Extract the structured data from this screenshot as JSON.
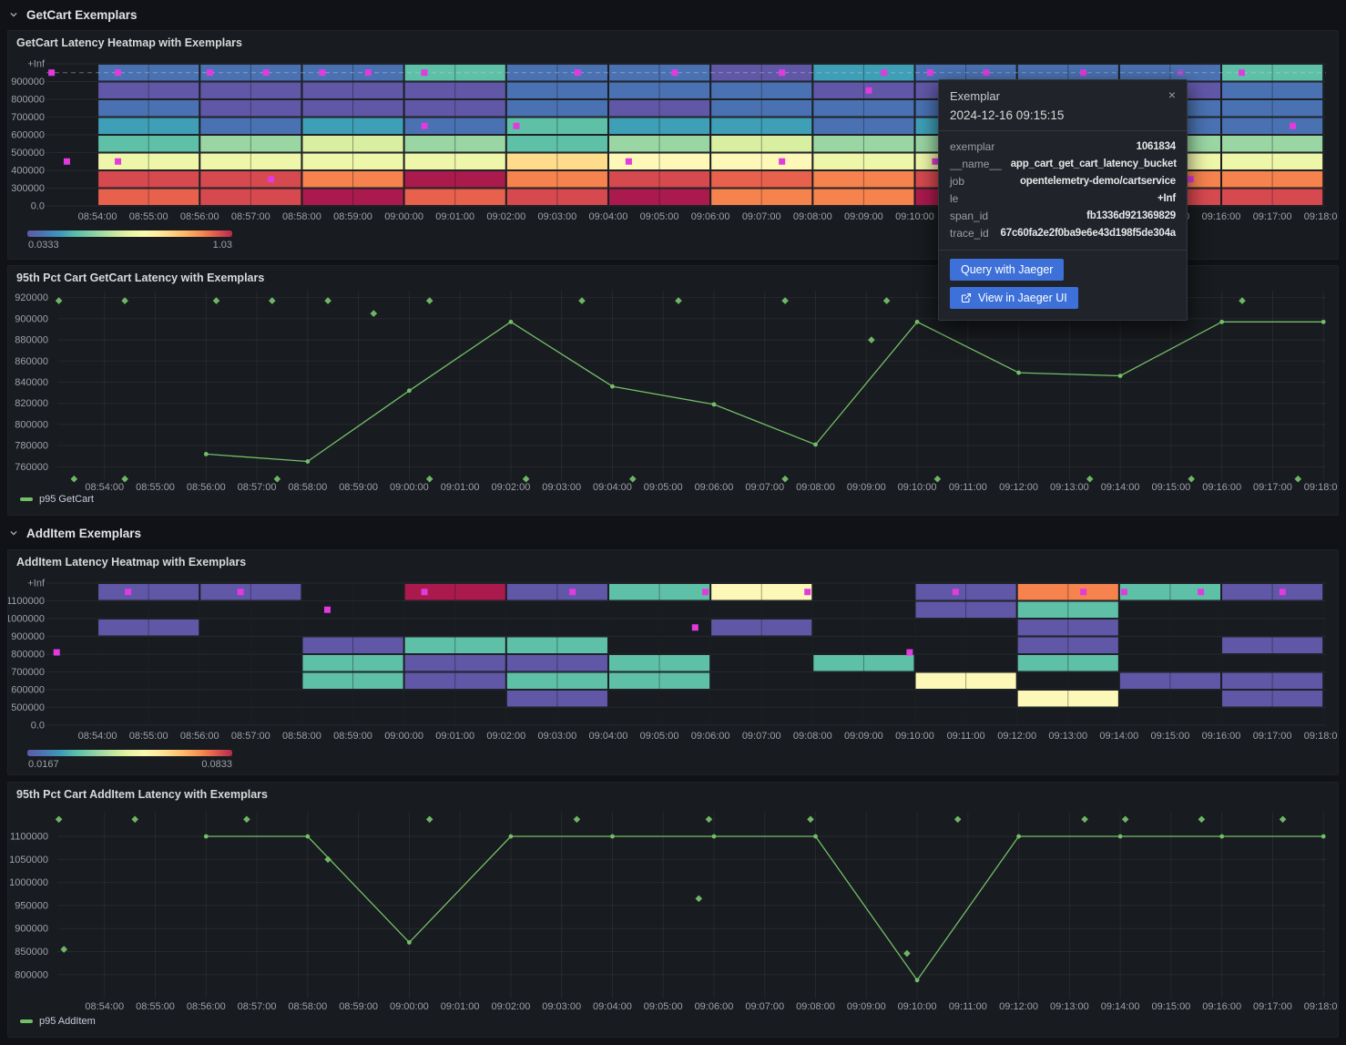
{
  "page": {
    "background": "#111217",
    "panel_background": "#181b1f"
  },
  "rows": [
    {
      "title": "GetCart Exemplars"
    },
    {
      "title": "AddItem Exemplars"
    }
  ],
  "xticks": {
    "start_minute": 54,
    "labels": [
      "08:54:00",
      "08:55:00",
      "08:56:00",
      "08:57:00",
      "08:58:00",
      "08:59:00",
      "09:00:00",
      "09:01:00",
      "09:02:00",
      "09:03:00",
      "09:04:00",
      "09:05:00",
      "09:06:00",
      "09:07:00",
      "09:08:00",
      "09:09:00",
      "09:10:00",
      "09:11:00",
      "09:12:00",
      "09:13:00",
      "09:14:00",
      "09:15:00",
      "09:16:00",
      "09:17:00",
      "09:18:00"
    ]
  },
  "palette": {
    "P": "#6057a7",
    "B": "#4a72b2",
    "T": "#3e9fb7",
    "G": "#5fc0a8",
    "g": "#9ad6a4",
    "y": "#d8eea0",
    "Y": "#eef6a9",
    "C": "#fdf8b8",
    "p": "#fedc8c",
    "O": "#f6824e",
    "r": "#e8614d",
    "R": "#d6494f",
    "K": "#ab1a4d"
  },
  "exemplar_color": "#e23adf",
  "series_color": "#73bf69",
  "chart_data": [
    {
      "type": "heatmap",
      "panel_title": "GetCart Latency Heatmap with Exemplars",
      "x_range": [
        53.0,
        78.05
      ],
      "col_start_minute": 54,
      "col_width_minutes": 2,
      "ybounds": [
        "+Inf",
        "900000",
        "800000",
        "700000",
        "600000",
        "500000",
        "400000",
        "300000",
        "0.0"
      ],
      "columns": [
        "BPBTGYRr",
        "BPPBgYRR",
        "BPPTyYOK",
        "GPPBgYKr",
        "BBBGGpOR",
        "BBPTgCRK",
        "PBBTyCrO",
        "TPBBgYOO",
        "BPBTgYRK",
        "BPBBgYOR",
        "BPBBgYOR",
        "GBBBgYOR"
      ],
      "exemplars": [
        {
          "m": 53.1,
          "band": 0
        },
        {
          "m": 54.4,
          "band": 0
        },
        {
          "m": 56.2,
          "band": 0
        },
        {
          "m": 57.3,
          "band": 0
        },
        {
          "m": 58.4,
          "band": 0
        },
        {
          "m": 59.3,
          "band": 0
        },
        {
          "m": 60.4,
          "band": 0
        },
        {
          "m": 63.4,
          "band": 0
        },
        {
          "m": 65.3,
          "band": 0
        },
        {
          "m": 67.4,
          "band": 0
        },
        {
          "m": 69.4,
          "band": 0
        },
        {
          "m": 70.3,
          "band": 0
        },
        {
          "m": 71.4,
          "band": 0
        },
        {
          "m": 73.3,
          "band": 0
        },
        {
          "m": 75.2,
          "band": 0,
          "faded": true
        },
        {
          "m": 76.4,
          "band": 0
        },
        {
          "m": 53.4,
          "band": 5
        },
        {
          "m": 54.4,
          "band": 5
        },
        {
          "m": 57.4,
          "band": 6
        },
        {
          "m": 60.4,
          "band": 3
        },
        {
          "m": 62.2,
          "band": 3
        },
        {
          "m": 64.4,
          "band": 5
        },
        {
          "m": 67.4,
          "band": 5
        },
        {
          "m": 69.1,
          "band": 1
        },
        {
          "m": 70.4,
          "band": 5
        },
        {
          "m": 75.4,
          "band": 6
        },
        {
          "m": 77.4,
          "band": 3
        }
      ],
      "dashed_band": 0,
      "colorbar": {
        "min_label": "0.0333",
        "max_label": "1.03"
      }
    },
    {
      "type": "line",
      "panel_title": "95th Pct Cart GetCart Latency with Exemplars",
      "series_name": "p95 GetCart",
      "x_range": [
        53.0,
        78.05
      ],
      "x_minutes": [
        56,
        58,
        60,
        62,
        64,
        66,
        68,
        70,
        72,
        74,
        76,
        78
      ],
      "values": [
        772000,
        765000,
        832000,
        897000,
        836000,
        819000,
        781000,
        897000,
        849000,
        846000,
        897000,
        897000
      ],
      "yticks": [
        920000,
        900000,
        880000,
        860000,
        840000,
        820000,
        800000,
        780000,
        760000
      ],
      "ylim": [
        746500,
        926600
      ],
      "exemplars": [
        {
          "m": 53.1,
          "v": 917000
        },
        {
          "m": 54.4,
          "v": 917000
        },
        {
          "m": 56.2,
          "v": 917000
        },
        {
          "m": 57.3,
          "v": 917000
        },
        {
          "m": 58.4,
          "v": 917000
        },
        {
          "m": 60.4,
          "v": 917000
        },
        {
          "m": 63.4,
          "v": 917000
        },
        {
          "m": 65.3,
          "v": 917000
        },
        {
          "m": 67.4,
          "v": 917000
        },
        {
          "m": 69.4,
          "v": 917000
        },
        {
          "m": 76.4,
          "v": 917000
        },
        {
          "m": 59.3,
          "v": 905000
        },
        {
          "m": 69.1,
          "v": 880000
        },
        {
          "m": 53.4,
          "v": 748500
        },
        {
          "m": 54.4,
          "v": 748500
        },
        {
          "m": 57.4,
          "v": 748500
        },
        {
          "m": 60.4,
          "v": 748500
        },
        {
          "m": 62.3,
          "v": 748500
        },
        {
          "m": 64.4,
          "v": 748500
        },
        {
          "m": 67.4,
          "v": 748500
        },
        {
          "m": 70.4,
          "v": 748500
        },
        {
          "m": 73.4,
          "v": 748500
        },
        {
          "m": 75.4,
          "v": 748500
        },
        {
          "m": 77.5,
          "v": 748500
        }
      ]
    },
    {
      "type": "heatmap",
      "panel_title": "AddItem Latency Heatmap with Exemplars",
      "x_range": [
        53.0,
        78.05
      ],
      "col_start_minute": 54,
      "col_width_minutes": 2,
      "ybounds": [
        "+Inf",
        "1100000",
        "1000000",
        "900000",
        "800000",
        "700000",
        "600000",
        "500000",
        "0.0"
      ],
      "columns": [
        "P.P.....",
        "P.......",
        "...PGG..",
        "K..GPP..",
        "P..GPGP.",
        "G...GG..",
        "C.P.....",
        "....G...",
        "PP...C..",
        "OGPPG.C.",
        "G....P..",
        "P..P.PP."
      ],
      "exemplars": [
        {
          "m": 54.6,
          "band": 0
        },
        {
          "m": 56.8,
          "band": 0
        },
        {
          "m": 60.4,
          "band": 0
        },
        {
          "m": 63.3,
          "band": 0
        },
        {
          "m": 65.9,
          "band": 0
        },
        {
          "m": 67.9,
          "band": 0
        },
        {
          "m": 70.8,
          "band": 0
        },
        {
          "m": 73.3,
          "band": 0
        },
        {
          "m": 74.1,
          "band": 0
        },
        {
          "m": 75.6,
          "band": 0
        },
        {
          "m": 77.2,
          "band": 0
        },
        {
          "m": 53.2,
          "band": 3.4
        },
        {
          "m": 58.5,
          "band": 1
        },
        {
          "m": 65.7,
          "band": 2
        },
        {
          "m": 69.9,
          "band": 3.4
        }
      ],
      "dashed_band": null,
      "colorbar": {
        "min_label": "0.0167",
        "max_label": "0.0833"
      }
    },
    {
      "type": "line",
      "panel_title": "95th Pct Cart AddItem Latency with Exemplars",
      "series_name": "p95 AddItem",
      "x_range": [
        53.0,
        78.05
      ],
      "x_minutes": [
        56,
        58,
        60,
        62,
        64,
        66,
        68,
        70,
        72,
        74,
        76,
        78
      ],
      "values": [
        1100000,
        1100000,
        870000,
        1100000,
        1100000,
        1100000,
        1100000,
        788000,
        1100000,
        1100000,
        1100000,
        1100000
      ],
      "yticks": [
        1100000,
        1050000,
        1000000,
        950000,
        900000,
        850000,
        800000
      ],
      "ylim": [
        748200,
        1153400
      ],
      "exemplars": [
        {
          "m": 53.1,
          "v": 1137000
        },
        {
          "m": 54.6,
          "v": 1137000
        },
        {
          "m": 56.8,
          "v": 1137000
        },
        {
          "m": 60.4,
          "v": 1137000
        },
        {
          "m": 63.3,
          "v": 1137000
        },
        {
          "m": 65.9,
          "v": 1137000
        },
        {
          "m": 67.9,
          "v": 1137000
        },
        {
          "m": 70.8,
          "v": 1137000
        },
        {
          "m": 73.3,
          "v": 1137000
        },
        {
          "m": 74.1,
          "v": 1137000
        },
        {
          "m": 75.6,
          "v": 1137000
        },
        {
          "m": 77.2,
          "v": 1137000
        },
        {
          "m": 53.2,
          "v": 855000
        },
        {
          "m": 58.4,
          "v": 1050000
        },
        {
          "m": 65.7,
          "v": 965000
        },
        {
          "m": 69.8,
          "v": 846000
        }
      ]
    }
  ],
  "tooltip": {
    "title": "Exemplar",
    "close_label": "×",
    "timestamp": "2024-12-16 09:15:15",
    "fields": [
      {
        "label": "exemplar",
        "value": "1061834"
      },
      {
        "label": "__name__",
        "value": "app_cart_get_cart_latency_bucket"
      },
      {
        "label": "job",
        "value": "opentelemetry-demo/cartservice"
      },
      {
        "label": "le",
        "value": "+Inf"
      },
      {
        "label": "span_id",
        "value": "fb1336d921369829"
      },
      {
        "label": "trace_id",
        "value": "67c60fa2e2f0ba9e6e43d198f5de304a"
      }
    ],
    "buttons": [
      {
        "label": "Query with Jaeger"
      },
      {
        "label": "View in Jaeger UI"
      }
    ],
    "accent": "#3d71d9"
  }
}
